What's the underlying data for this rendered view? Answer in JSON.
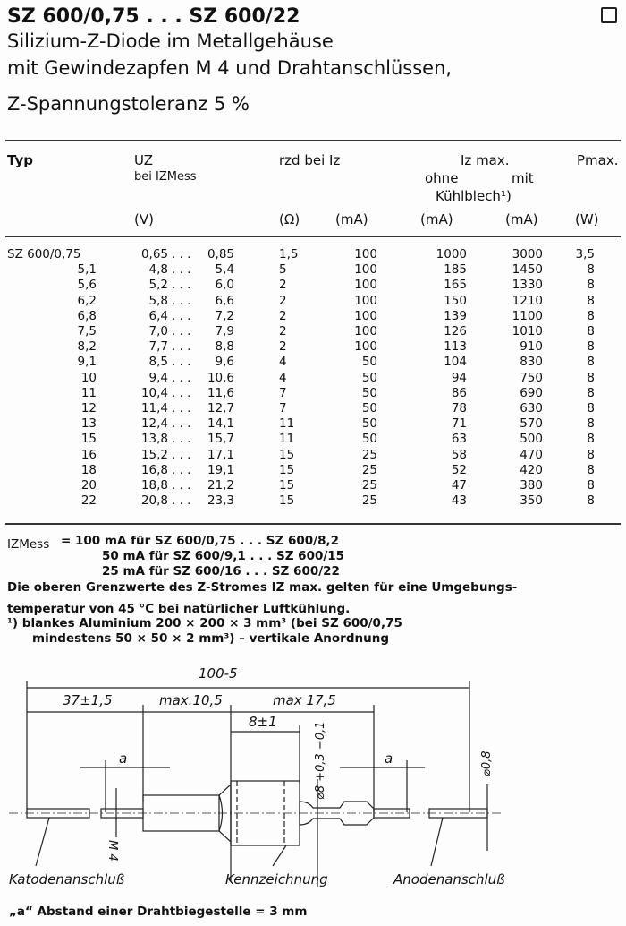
{
  "header": {
    "title": "SZ 600/0,75 . . . SZ 600/22",
    "subtitle_lines": [
      "Silizium-Z-Diode im Metallgehäuse",
      "mit Gewindezapfen M 4 und Drahtanschlüssen,",
      "Z-Spannungstoleranz 5 %"
    ]
  },
  "table": {
    "headers": {
      "typ": "Typ",
      "uz": "UZ",
      "uz_sub": "bei IZMess",
      "rzd": "rzd bei Iz",
      "iz_max": "Iz max.",
      "ohne": "ohne",
      "mit": "mit",
      "kuehlblech": "Kühlblech¹)",
      "pmax": "Pmax.",
      "units": [
        "(V)",
        "(Ω)",
        "(mA)",
        "(mA)",
        "(mA)",
        "(W)"
      ]
    },
    "rows": [
      [
        "SZ 600/0,75",
        "0,65",
        "0,85",
        "1,5",
        "100",
        "1000",
        "3000",
        "3,5"
      ],
      [
        "5,1",
        "4,8",
        "5,4",
        "5",
        "100",
        "185",
        "1450",
        "8"
      ],
      [
        "5,6",
        "5,2",
        "6,0",
        "2",
        "100",
        "165",
        "1330",
        "8"
      ],
      [
        "6,2",
        "5,8",
        "6,6",
        "2",
        "100",
        "150",
        "1210",
        "8"
      ],
      [
        "6,8",
        "6,4",
        "7,2",
        "2",
        "100",
        "139",
        "1100",
        "8"
      ],
      [
        "7,5",
        "7,0",
        "7,9",
        "2",
        "100",
        "126",
        "1010",
        "8"
      ],
      [
        "8,2",
        "7,7",
        "8,8",
        "2",
        "100",
        "113",
        "910",
        "8"
      ],
      [
        "9,1",
        "8,5",
        "9,6",
        "4",
        "50",
        "104",
        "830",
        "8"
      ],
      [
        "10",
        "9,4",
        "10,6",
        "4",
        "50",
        "94",
        "750",
        "8"
      ],
      [
        "11",
        "10,4",
        "11,6",
        "7",
        "50",
        "86",
        "690",
        "8"
      ],
      [
        "12",
        "11,4",
        "12,7",
        "7",
        "50",
        "78",
        "630",
        "8"
      ],
      [
        "13",
        "12,4",
        "14,1",
        "11",
        "50",
        "71",
        "570",
        "8"
      ],
      [
        "15",
        "13,8",
        "15,7",
        "11",
        "50",
        "63",
        "500",
        "8"
      ],
      [
        "16",
        "15,2",
        "17,1",
        "15",
        "25",
        "58",
        "470",
        "8"
      ],
      [
        "18",
        "16,8",
        "19,1",
        "15",
        "25",
        "52",
        "420",
        "8"
      ],
      [
        "20",
        "18,8",
        "21,2",
        "15",
        "25",
        "47",
        "380",
        "8"
      ],
      [
        "22",
        "20,8",
        "23,3",
        "15",
        "25",
        "43",
        "350",
        "8"
      ]
    ],
    "range_sep": ". . ."
  },
  "notes": {
    "izmess_label": "IZMess",
    "izmess_lines": [
      "= 100 mA für SZ 600/0,75 . . . SZ 600/8,2",
      "50 mA für SZ 600/9,1   . . . SZ 600/15",
      "25 mA für SZ 600/16    . . . SZ 600/22"
    ],
    "para1": "Die oberen Grenzwerte des Z-Stromes IZ max. gelten für eine Umgebungs-",
    "para2": "temperatur von 45 °C bei natürlicher Luftkühlung.",
    "foot1": "¹)  blankes Aluminium 200 × 200 × 3 mm³ (bei SZ 600/0,75",
    "foot2": "mindestens 50 × 50 × 2 mm³) – vertikale Anordnung"
  },
  "drawing": {
    "dim_total": "100-5",
    "dim_37": "37±1,5",
    "dim_105": "max.10,5",
    "dim_175": "max 17,5",
    "dim_8": "8±1",
    "dim_a": "a",
    "dim_m4": "M 4",
    "dim_d8": "⌀8 +0,3 −0,1",
    "dim_d08": "⌀0,8",
    "label_kathode": "Katodenanschluß",
    "label_kenn": "Kennzeichnung",
    "label_anode": "Anodenanschluß"
  },
  "caption": "„a“ Abstand einer Drahtbiegestelle = 3 mm"
}
